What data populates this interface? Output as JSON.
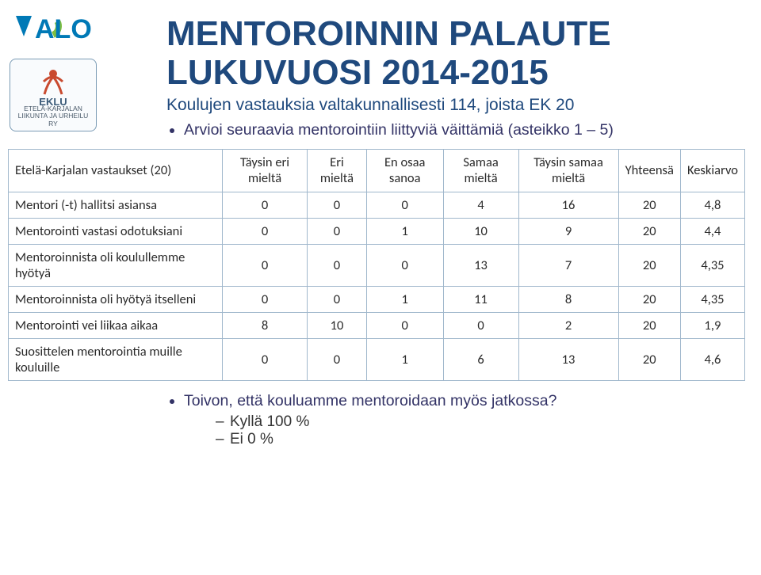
{
  "title": {
    "line1": "MENTOROINNIN PALAUTE",
    "line2": "LUKUVUOSI 2014-2015",
    "color": "#1f497d",
    "fontsize": 44
  },
  "subtitle": {
    "text": "Koulujen vastauksia valtakunnallisesti 114, joista EK 20",
    "color": "#1f497d",
    "fontsize": 21
  },
  "top_bullet": "Arvioi seuraavia mentorointiin liittyviä väittämiä (asteikko 1 – 5)",
  "logos": {
    "valo": {
      "name": "VALO",
      "primary": "#0079b6",
      "accent": "#7fbf3f"
    },
    "eklu": {
      "line1": "ETELÄ-KARJALAN",
      "line2": "LIIKUNTA JA URHEILU RY"
    }
  },
  "table": {
    "border_color": "#a0b7cc",
    "header_bg": "#ffffff",
    "fontsize": 16.5,
    "columns": [
      "Etelä-Karjalan vastaukset (20)",
      "Täysin eri mieltä",
      "Eri mieltä",
      "En osaa sanoa",
      "Samaa mieltä",
      "Täysin samaa mieltä",
      "Yhteensä",
      "Keskiarvo"
    ],
    "rows": [
      {
        "label": "Mentori (-t) hallitsi asiansa",
        "v": [
          0,
          0,
          0,
          4,
          16,
          20,
          "4,8"
        ]
      },
      {
        "label": "Mentorointi vastasi odotuksiani",
        "v": [
          0,
          0,
          1,
          10,
          9,
          20,
          "4,4"
        ]
      },
      {
        "label": "Mentoroinnista oli koulullemme hyötyä",
        "v": [
          0,
          0,
          0,
          13,
          7,
          20,
          "4,35"
        ]
      },
      {
        "label": "Mentoroinnista oli hyötyä itselleni",
        "v": [
          0,
          0,
          1,
          11,
          8,
          20,
          "4,35"
        ]
      },
      {
        "label": "Mentorointi vei liikaa aikaa",
        "v": [
          8,
          10,
          0,
          0,
          2,
          20,
          "1,9"
        ]
      },
      {
        "label": "Suosittelen mentorointia muille kouluille",
        "v": [
          0,
          0,
          1,
          6,
          13,
          20,
          "4,6"
        ]
      }
    ]
  },
  "bottom": {
    "question": "Toivon, että kouluamme mentoroidaan myös jatkossa?",
    "answers": [
      "Kyllä 100 %",
      "Ei 0 %"
    ]
  }
}
